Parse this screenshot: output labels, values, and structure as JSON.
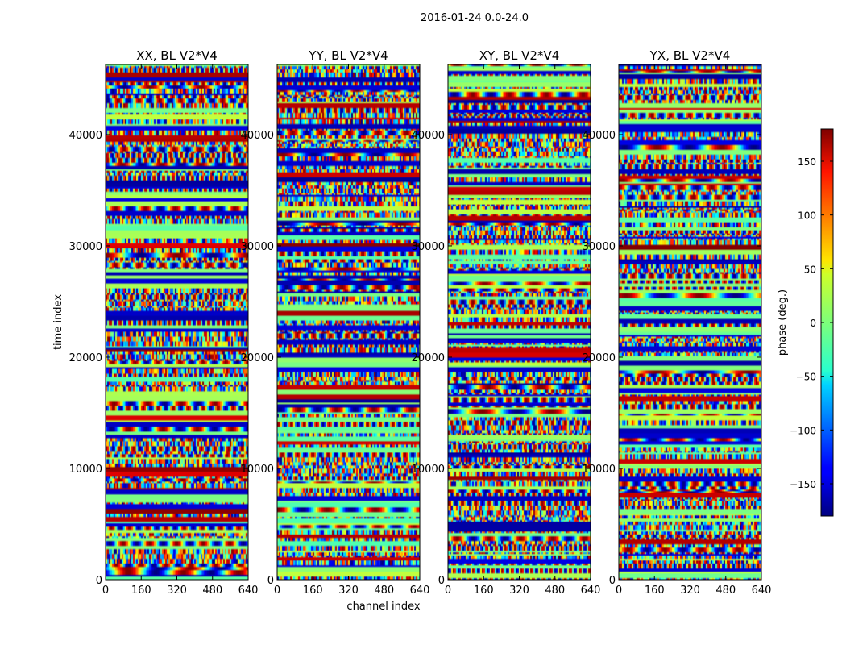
{
  "figure": {
    "suptitle": "2016-01-24 0.0-24.0"
  },
  "chart_data": [
    {
      "type": "heatmap",
      "title": "XX, BL V2*V4",
      "xlabel": "",
      "ylabel": "time index",
      "xlim": [
        0,
        640
      ],
      "ylim": [
        0,
        46300
      ],
      "xticks": [
        0,
        160,
        320,
        480,
        640
      ],
      "xtick_labels": [
        "0",
        "160",
        "320",
        "480",
        "640"
      ],
      "yticks": [
        0,
        10000,
        20000,
        30000,
        40000
      ],
      "ytick_labels": [
        "0",
        "10000",
        "20000",
        "30000",
        "40000"
      ],
      "value_range": [
        -180,
        180
      ],
      "seed": 11
    },
    {
      "type": "heatmap",
      "title": "YY, BL V2*V4",
      "xlabel": "channel index",
      "ylabel": "",
      "xlim": [
        0,
        640
      ],
      "ylim": [
        0,
        46300
      ],
      "xticks": [
        0,
        160,
        320,
        480,
        640
      ],
      "xtick_labels": [
        "0",
        "160",
        "320",
        "480",
        "640"
      ],
      "yticks": [
        0,
        10000,
        20000,
        30000,
        40000
      ],
      "ytick_labels": [
        "0",
        "10000",
        "20000",
        "30000",
        "40000"
      ],
      "value_range": [
        -180,
        180
      ],
      "seed": 23
    },
    {
      "type": "heatmap",
      "title": "XY, BL V2*V4",
      "xlabel": "",
      "ylabel": "",
      "xlim": [
        0,
        640
      ],
      "ylim": [
        0,
        46300
      ],
      "xticks": [
        0,
        160,
        320,
        480,
        640
      ],
      "xtick_labels": [
        "0",
        "160",
        "320",
        "480",
        "640"
      ],
      "yticks": [
        0,
        10000,
        20000,
        30000,
        40000
      ],
      "ytick_labels": [
        "0",
        "10000",
        "20000",
        "30000",
        "40000"
      ],
      "value_range": [
        -180,
        180
      ],
      "seed": 37
    },
    {
      "type": "heatmap",
      "title": "YX, BL V2*V4",
      "xlabel": "",
      "ylabel": "",
      "xlim": [
        0,
        640
      ],
      "ylim": [
        0,
        46300
      ],
      "xticks": [
        0,
        160,
        320,
        480,
        640
      ],
      "xtick_labels": [
        "0",
        "160",
        "320",
        "480",
        "640"
      ],
      "yticks": [
        0,
        10000,
        20000,
        30000,
        40000
      ],
      "ytick_labels": [
        "0",
        "10000",
        "20000",
        "30000",
        "40000"
      ],
      "value_range": [
        -180,
        180
      ],
      "seed": 53
    }
  ],
  "colorbar": {
    "label": "phase (deg.)",
    "colormap": "jet",
    "range": [
      -180,
      180
    ],
    "ticks": [
      150,
      100,
      50,
      0,
      -50,
      -100,
      -150
    ],
    "tick_labels": [
      "150",
      "100",
      "50",
      "0",
      "−50",
      "−100",
      "−150"
    ]
  }
}
